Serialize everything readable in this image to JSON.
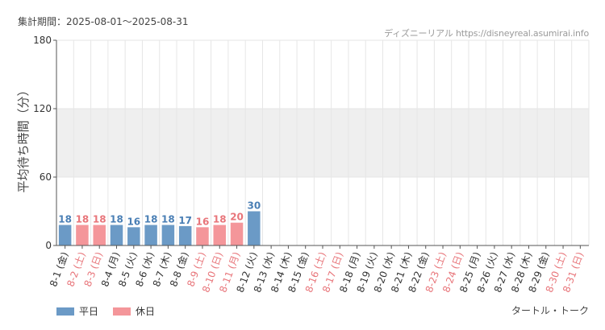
{
  "header": {
    "period": "集計期間：2025-08-01〜2025-08-31",
    "source": "ディズニーリアル https://disneyreal.asumirai.info"
  },
  "footer": {
    "attraction": "タートル・トーク"
  },
  "colors": {
    "weekday": "#6b9ac6",
    "holiday": "#f4969a",
    "weekday_label": "#4a7fb5",
    "holiday_label": "#e8757a",
    "band": "#efefef",
    "grid": "#e6e6e6",
    "axis": "#555555",
    "tick_text": "#333333"
  },
  "chart_data": {
    "type": "bar",
    "ylabel": "平均待ち時間（分）",
    "ylim": [
      0,
      180
    ],
    "yticks": [
      0,
      60,
      120,
      180
    ],
    "shaded_band": [
      60,
      120
    ],
    "grid": true,
    "legend_position": "bottom-left",
    "series": [
      {
        "name": "平日",
        "color": "#6b9ac6"
      },
      {
        "name": "休日",
        "color": "#f4969a"
      }
    ],
    "categories": [
      "8-1 (金)",
      "8-2 (土)",
      "8-3 (日)",
      "8-4 (月)",
      "8-5 (火)",
      "8-6 (水)",
      "8-7 (木)",
      "8-8 (金)",
      "8-9 (土)",
      "8-10 (日)",
      "8-11 (月)",
      "8-12 (火)",
      "8-13 (水)",
      "8-14 (木)",
      "8-15 (金)",
      "8-16 (土)",
      "8-17 (日)",
      "8-18 (月)",
      "8-19 (火)",
      "8-20 (水)",
      "8-21 (木)",
      "8-22 (金)",
      "8-23 (土)",
      "8-24 (日)",
      "8-25 (月)",
      "8-26 (火)",
      "8-27 (水)",
      "8-28 (木)",
      "8-29 (金)",
      "8-30 (土)",
      "8-31 (日)"
    ],
    "day_type": [
      "平日",
      "休日",
      "休日",
      "平日",
      "平日",
      "平日",
      "平日",
      "平日",
      "休日",
      "休日",
      "休日",
      "平日",
      "平日",
      "平日",
      "平日",
      "休日",
      "休日",
      "平日",
      "平日",
      "平日",
      "平日",
      "平日",
      "休日",
      "休日",
      "平日",
      "平日",
      "平日",
      "平日",
      "平日",
      "休日",
      "休日"
    ],
    "values": [
      18,
      18,
      18,
      18,
      16,
      18,
      18,
      17,
      16,
      18,
      20,
      30,
      null,
      null,
      null,
      null,
      null,
      null,
      null,
      null,
      null,
      null,
      null,
      null,
      null,
      null,
      null,
      null,
      null,
      null,
      null
    ]
  }
}
